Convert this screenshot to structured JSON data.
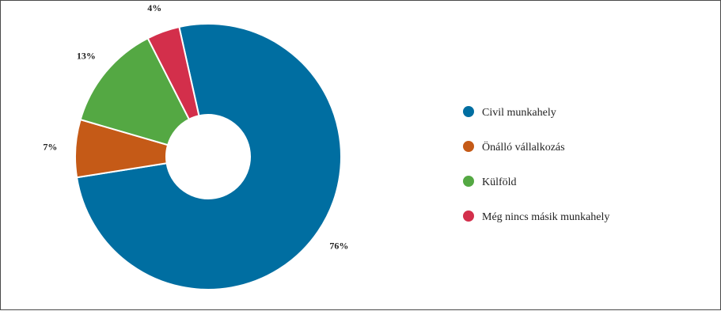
{
  "chart_data": {
    "type": "pie",
    "title": "",
    "categories": [
      "Civil munkahely",
      "Önálló vállalkozás",
      "Külföld",
      "Még nincs másik munkahely"
    ],
    "values": [
      76,
      7,
      13,
      4
    ],
    "value_labels": [
      "76%",
      "7%",
      "13%",
      "4%"
    ],
    "colors": [
      "#006ea1",
      "#c55a17",
      "#54a843",
      "#d32f4b"
    ],
    "donut": true,
    "legend_position": "right"
  }
}
